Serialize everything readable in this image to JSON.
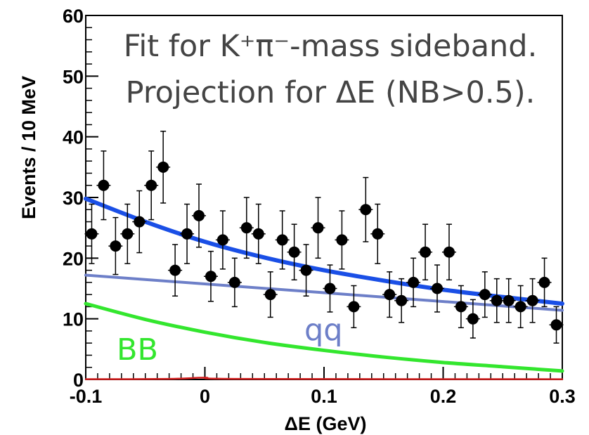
{
  "chart_data": {
    "type": "scatter",
    "title_lines": [
      "Fit for K⁺π⁻-mass sideband.",
      "Projection for ΔE (NB>0.5)."
    ],
    "xlabel": "ΔE (GeV)",
    "ylabel": "Events / 10 MeV",
    "xlim": [
      -0.1,
      0.3
    ],
    "ylim": [
      0,
      60
    ],
    "x_ticks": [
      -0.1,
      0,
      0.1,
      0.2,
      0.3
    ],
    "x_tick_labels": [
      "-0.1",
      "0",
      "0.1",
      "0.2",
      "0.3"
    ],
    "y_ticks": [
      0,
      10,
      20,
      30,
      40,
      50,
      60
    ],
    "y_tick_labels": [
      "0",
      "10",
      "20",
      "30",
      "40",
      "50",
      "60"
    ],
    "grid": false,
    "series": [
      {
        "kind": "data_points",
        "color": "#000000",
        "x": [
          -0.095,
          -0.085,
          -0.075,
          -0.065,
          -0.055,
          -0.045,
          -0.035,
          -0.025,
          -0.015,
          -0.005,
          0.005,
          0.015,
          0.025,
          0.035,
          0.045,
          0.055,
          0.065,
          0.075,
          0.085,
          0.095,
          0.105,
          0.115,
          0.125,
          0.135,
          0.145,
          0.155,
          0.165,
          0.175,
          0.185,
          0.195,
          0.205,
          0.215,
          0.225,
          0.235,
          0.245,
          0.255,
          0.265,
          0.275,
          0.285,
          0.295
        ],
        "y": [
          24,
          32,
          22,
          24,
          26,
          32,
          35,
          18,
          24,
          27,
          17,
          23,
          16,
          25,
          24,
          14,
          23,
          21,
          18,
          25,
          15,
          23,
          12,
          28,
          24,
          14,
          13,
          16,
          21,
          15,
          21,
          12,
          10,
          14,
          13,
          13,
          12,
          13,
          16,
          9
        ]
      },
      {
        "kind": "fit_total",
        "color": "#1a4fe6",
        "x": [
          -0.1,
          -0.05,
          0,
          0.05,
          0.1,
          0.15,
          0.2,
          0.25,
          0.3
        ],
        "y": [
          29.8,
          26.0,
          22.7,
          20.1,
          18.0,
          16.3,
          14.8,
          13.6,
          12.5
        ]
      },
      {
        "kind": "fit_qq",
        "label": "qq",
        "color": "#6d7fc8",
        "x": [
          -0.1,
          0.3
        ],
        "y": [
          17.2,
          11.4
        ]
      },
      {
        "kind": "fit_bb",
        "label": "BB",
        "color": "#33e62e",
        "x": [
          -0.1,
          -0.05,
          0,
          0.05,
          0.1,
          0.15,
          0.2,
          0.25,
          0.3
        ],
        "y": [
          12.5,
          9.9,
          7.8,
          6.1,
          4.8,
          3.7,
          2.8,
          2.1,
          1.4
        ]
      },
      {
        "kind": "fit_peaking",
        "color": "#d21e1e",
        "x": [
          -0.1,
          -0.03,
          0,
          0.03,
          0.3
        ],
        "y": [
          0.05,
          0.1,
          0.3,
          0.1,
          0.05
        ]
      }
    ]
  }
}
